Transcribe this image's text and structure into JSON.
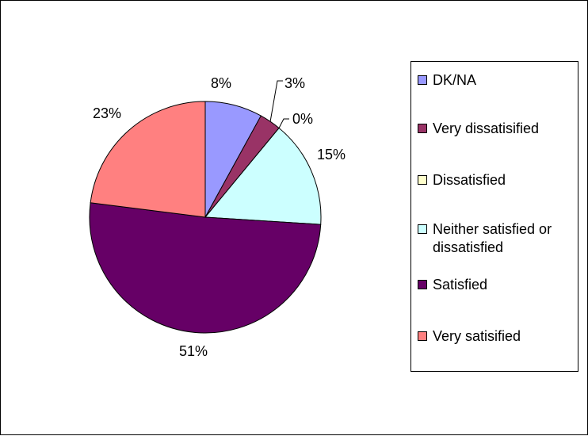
{
  "chart_data": {
    "type": "pie",
    "title": "",
    "categories": [
      "DK/NA",
      "Very dissatisified",
      "Dissatisfied",
      "Neither satisfied or dissatisfied",
      "Satisfied",
      "Very satisified"
    ],
    "values": [
      8,
      3,
      0,
      15,
      51,
      23
    ],
    "labels": [
      "8%",
      "3%",
      "0%",
      "15%",
      "51%",
      "23%"
    ],
    "colors": [
      "#9999FF",
      "#993366",
      "#FFFFCC",
      "#CCFFFF",
      "#660066",
      "#FF8080"
    ],
    "legend_position": "right",
    "start_angle": "12 o'clock",
    "direction": "clockwise"
  }
}
